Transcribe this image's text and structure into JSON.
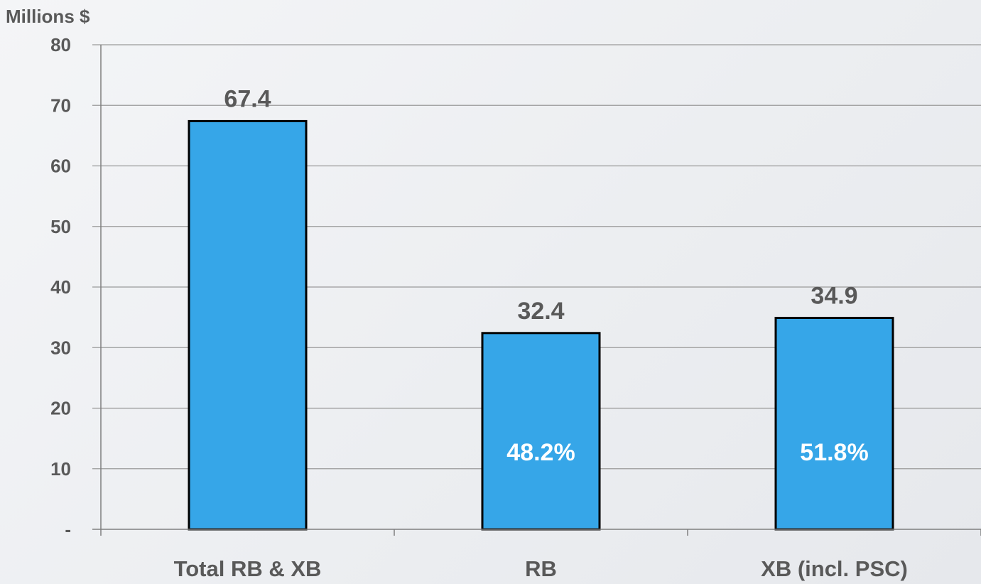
{
  "chart_data": {
    "type": "bar",
    "unit_label": "Millions $",
    "categories": [
      "Total RB & XB",
      "RB",
      "XB (incl. PSC)"
    ],
    "values": [
      67.4,
      32.4,
      34.9
    ],
    "value_labels": [
      "67.4",
      "32.4",
      "34.9"
    ],
    "share_labels": [
      "",
      "48.2%",
      "51.8%"
    ],
    "y_ticks": [
      0,
      10,
      20,
      30,
      40,
      50,
      60,
      70,
      80
    ],
    "y_tick_labels": [
      "-",
      "10",
      "20",
      "30",
      "40",
      "50",
      "60",
      "70",
      "80"
    ],
    "ylim": [
      0,
      80
    ],
    "grid": true,
    "legend": "none",
    "bar_color": "#36a6e8",
    "bar_edge_color": "#000000",
    "text_color": "#595959"
  }
}
